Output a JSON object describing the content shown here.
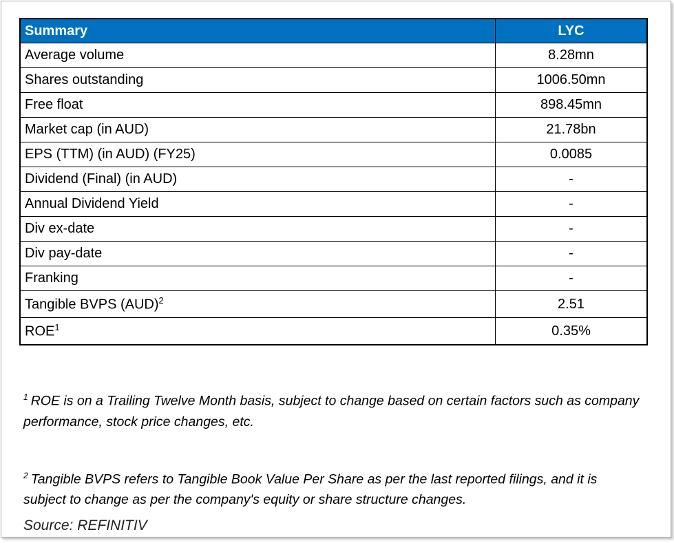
{
  "table": {
    "header": [
      "Summary",
      "LYC"
    ],
    "rows": [
      {
        "label": "Average volume",
        "value": "8.28mn"
      },
      {
        "label": "Shares outstanding",
        "value": "1006.50mn"
      },
      {
        "label": "Free float",
        "value": "898.45mn"
      },
      {
        "label": "Market cap (in AUD)",
        "value": "21.78bn"
      },
      {
        "label": "EPS (TTM) (in AUD) (FY25)",
        "value": "0.0085"
      },
      {
        "label": "Dividend (Final) (in AUD)",
        "value": "-"
      },
      {
        "label": "Annual Dividend Yield",
        "value": "-"
      },
      {
        "label": "Div ex-date",
        "value": "-"
      },
      {
        "label": "Div pay-date",
        "value": "-"
      },
      {
        "label": "Franking",
        "value": "-"
      },
      {
        "label": "Tangible BVPS (AUD)",
        "sup": "2",
        "value": "2.51"
      },
      {
        "label": "ROE",
        "sup": "1",
        "value": "0.35%"
      }
    ]
  },
  "footnotes": [
    {
      "marker": "1",
      "text": "ROE is on a Trailing Twelve Month basis, subject to change based on certain factors such as company performance, stock price changes, etc."
    },
    {
      "marker": "2",
      "text": "Tangible BVPS refers to Tangible Book Value Per Share as per the last reported filings, and it is subject to change as per the company's equity or share structure changes."
    }
  ],
  "source": "Source: REFINITIV"
}
